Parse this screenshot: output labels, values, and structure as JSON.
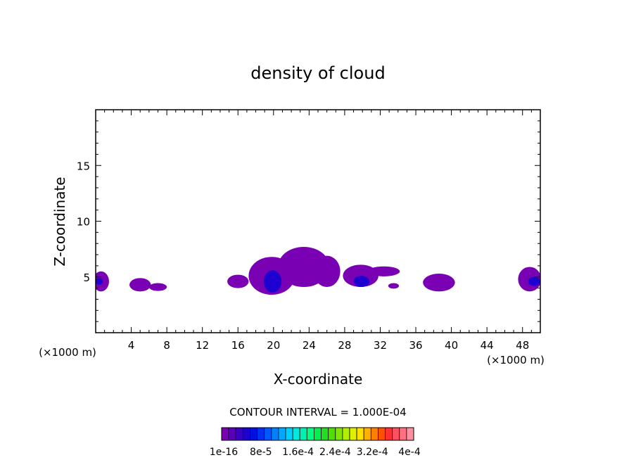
{
  "chart_data": {
    "type": "contour",
    "title": "density of cloud",
    "xlabel": "X-coordinate",
    "ylabel": "Z-coordinate",
    "x_unit_left": "(×1000 m)",
    "x_unit_right": "(×1000 m)",
    "xlim": [
      0,
      50
    ],
    "ylim": [
      0,
      20
    ],
    "xticks": [
      4,
      8,
      12,
      16,
      20,
      24,
      28,
      32,
      36,
      40,
      44,
      48
    ],
    "yticks": [
      5,
      10,
      15
    ],
    "contour_interval_text": "CONTOUR INTERVAL = 1.000E-04",
    "colorbar": {
      "labels": [
        "1e-16",
        "8e-5",
        "1.6e-4",
        "2.4e-4",
        "3.2e-4",
        "4e-4"
      ],
      "colors": [
        "#7a00b4",
        "#5a00bc",
        "#3b00c4",
        "#1e00d0",
        "#0010e0",
        "#0030f0",
        "#0058ff",
        "#0080ff",
        "#00a8ff",
        "#00d0ff",
        "#00e8e0",
        "#00f0b0",
        "#00ff80",
        "#00f050",
        "#20e020",
        "#50e000",
        "#80e800",
        "#b0f000",
        "#e0f000",
        "#ffe000",
        "#ffb000",
        "#ff8000",
        "#ff5000",
        "#ff3030",
        "#ff5060",
        "#ff7080",
        "#ff90a0"
      ]
    },
    "cells": [
      {
        "x": 0.6,
        "z": 4.6,
        "rx": 0.9,
        "rz": 0.9,
        "level": 0
      },
      {
        "x": 5.0,
        "z": 4.3,
        "rx": 1.2,
        "rz": 0.6,
        "level": 0
      },
      {
        "x": 7.0,
        "z": 4.1,
        "rx": 1.0,
        "rz": 0.35,
        "level": 0
      },
      {
        "x": 16.0,
        "z": 4.6,
        "rx": 1.2,
        "rz": 0.6,
        "level": 0
      },
      {
        "x": 19.8,
        "z": 5.1,
        "rx": 2.6,
        "rz": 1.7,
        "level": 0
      },
      {
        "x": 23.4,
        "z": 5.9,
        "rx": 2.9,
        "rz": 1.8,
        "level": 0
      },
      {
        "x": 26.0,
        "z": 5.5,
        "rx": 1.5,
        "rz": 1.4,
        "level": 0
      },
      {
        "x": 29.8,
        "z": 5.1,
        "rx": 2.0,
        "rz": 1.0,
        "level": 0
      },
      {
        "x": 32.4,
        "z": 5.5,
        "rx": 1.8,
        "rz": 0.45,
        "level": 0
      },
      {
        "x": 33.5,
        "z": 4.2,
        "rx": 0.6,
        "rz": 0.25,
        "level": 0
      },
      {
        "x": 38.6,
        "z": 4.5,
        "rx": 1.8,
        "rz": 0.8,
        "level": 0
      },
      {
        "x": 48.8,
        "z": 4.8,
        "rx": 1.3,
        "rz": 1.1,
        "level": 0
      },
      {
        "x": 19.9,
        "z": 4.6,
        "rx": 1.0,
        "rz": 1.0,
        "level": 3
      },
      {
        "x": 29.9,
        "z": 4.6,
        "rx": 0.9,
        "rz": 0.5,
        "level": 3
      },
      {
        "x": 0.4,
        "z": 4.6,
        "rx": 0.4,
        "rz": 0.3,
        "level": 3
      },
      {
        "x": 49.3,
        "z": 4.6,
        "rx": 0.7,
        "rz": 0.4,
        "level": 3
      }
    ]
  }
}
